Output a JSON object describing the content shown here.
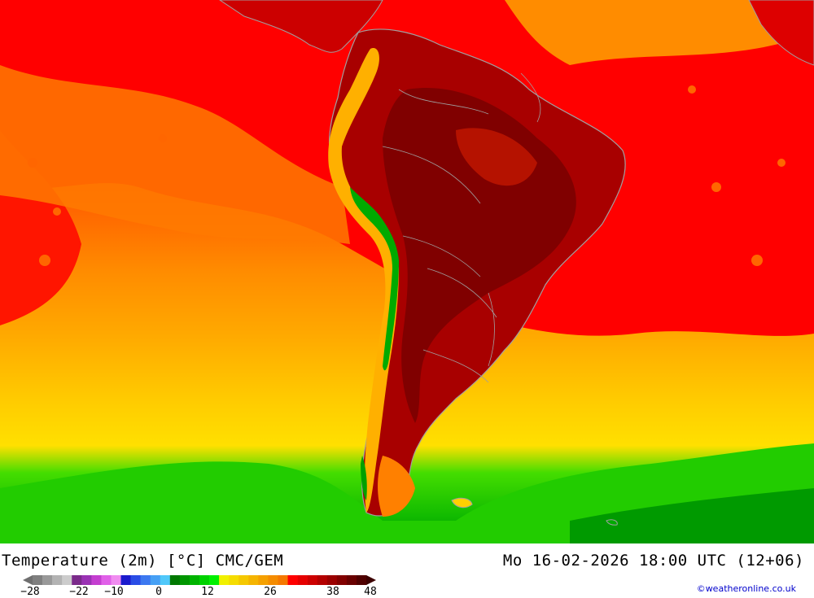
{
  "map": {
    "title_left": "Temperature (2m) [°C] CMC/GEM",
    "title_right": "Mo 16-02-2026 18:00 UTC (12+06)",
    "credit": "©weatheronline.co.uk",
    "colors": {
      "ocean_warm": "#ff0000",
      "ocean_mid": "#ff6600",
      "ocean_orange": "#ff9900",
      "ocean_amber": "#ffaa00",
      "ocean_yellow": "#ffd200",
      "ocean_cold_green": "#22cc00",
      "ocean_dark_green": "#009900",
      "land_hot": "#a50000",
      "land_very_hot": "#7a0000",
      "andes_cool": "#ffcc33",
      "andes_green": "#00aa00",
      "borders": "#a0a0a0"
    }
  },
  "legend": {
    "colors": [
      "#7f7f7f",
      "#999999",
      "#b3b3b3",
      "#cccccc",
      "#7a2a8a",
      "#9a32b4",
      "#c43ed0",
      "#e060e8",
      "#f08cf0",
      "#1a1acd",
      "#2a4de6",
      "#3c78f0",
      "#46a0f5",
      "#50c8fa",
      "#007800",
      "#009600",
      "#00b400",
      "#00d200",
      "#00f000",
      "#f0f000",
      "#f5dc00",
      "#f5c800",
      "#f5b400",
      "#f5a000",
      "#f58c00",
      "#f57800",
      "#ff0000",
      "#e60000",
      "#cd0000",
      "#b40000",
      "#9b0000",
      "#820000",
      "#690000",
      "#500000"
    ],
    "ticks": [
      "-28",
      "-22",
      "-10",
      "0",
      "12",
      "26",
      "38",
      "48"
    ]
  }
}
